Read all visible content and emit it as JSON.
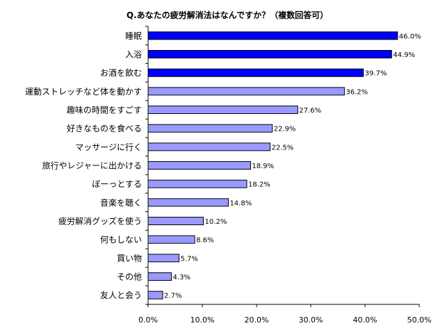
{
  "chart_data": {
    "type": "bar",
    "orientation": "horizontal",
    "title": "Q.あなたの疲労解消法はなんですか？（複数回答可）",
    "categories": [
      "睡眠",
      "入浴",
      "お酒を飲む",
      "運動ストレッチなど体を動かす",
      "趣味の時間をすごす",
      "好きなものを食べる",
      "マッサージに行く",
      "旅行やレジャーに出かける",
      "ぼーっとする",
      "音楽を聴く",
      "疲労解消グッズを使う",
      "何もしない",
      "買い物",
      "その他",
      "友人と会う"
    ],
    "values": [
      46.0,
      44.9,
      39.7,
      36.2,
      27.6,
      22.9,
      22.5,
      18.9,
      18.2,
      14.8,
      10.2,
      8.6,
      5.7,
      4.3,
      2.7
    ],
    "value_labels": [
      "46.0%",
      "44.9%",
      "39.7%",
      "36.2%",
      "27.6%",
      "22.9%",
      "22.5%",
      "18.9%",
      "18.2%",
      "14.8%",
      "10.2%",
      "8.6%",
      "5.7%",
      "4.3%",
      "2.7%"
    ],
    "xlim": [
      0,
      50
    ],
    "xticks": [
      "0.0%",
      "10.0%",
      "20.0%",
      "30.0%",
      "40.0%",
      "50.0%"
    ],
    "xtick_values": [
      0,
      10,
      20,
      30,
      40,
      50
    ],
    "grid": false,
    "legend": "none",
    "colors": {
      "highlight": "#0000ff",
      "normal": "#9999ff",
      "outline": "#000000",
      "axis": "#000000"
    },
    "highlight_top_n": 3
  }
}
